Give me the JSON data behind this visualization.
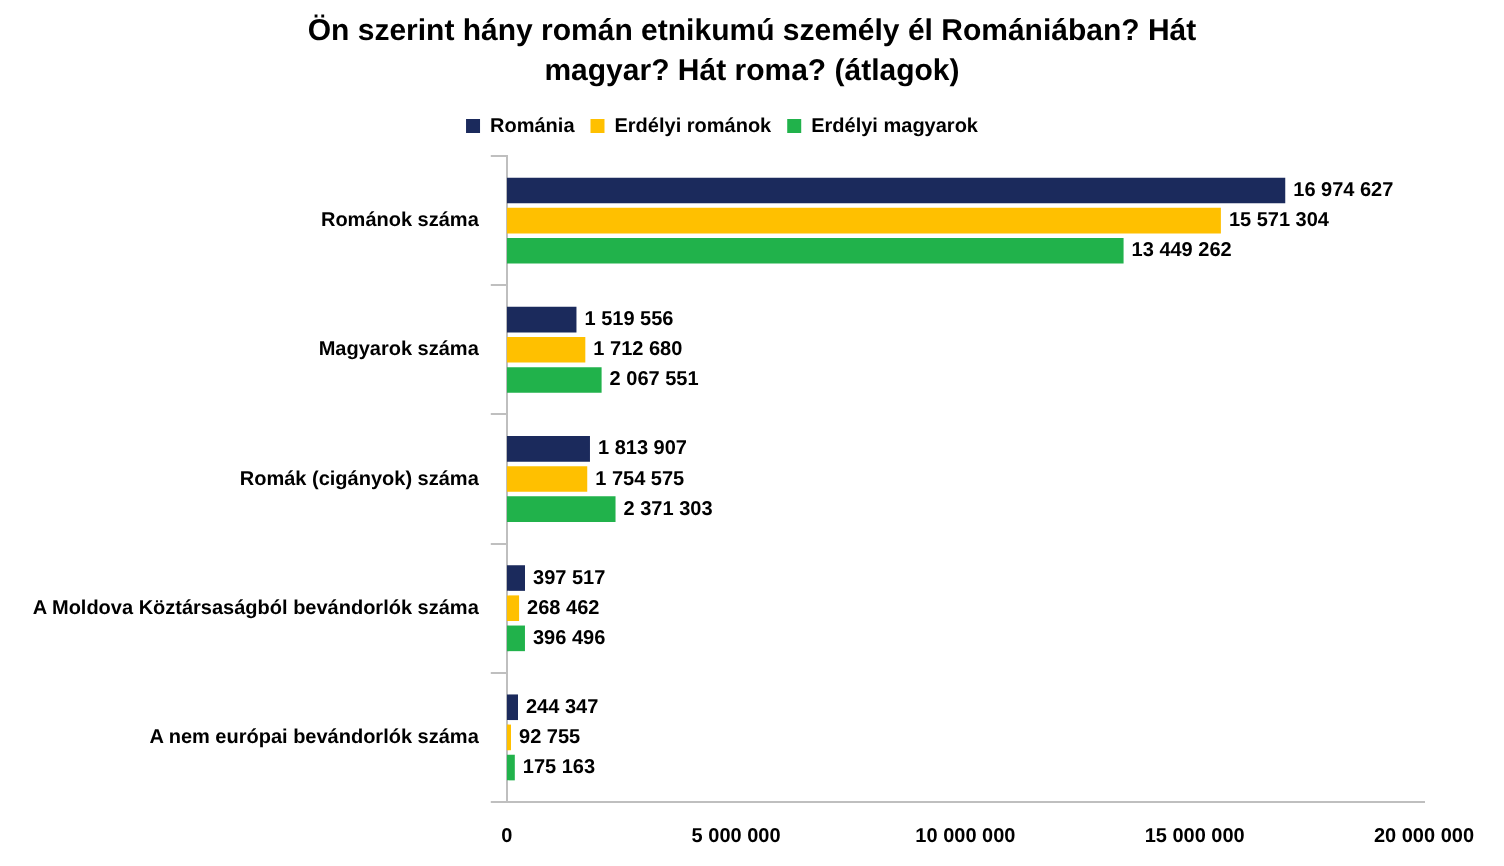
{
  "chart_data": {
    "type": "bar",
    "orientation": "horizontal",
    "title": "Ön szerint hány román etnikumú személy él Romániában? Hát magyar? Hát roma? (átlagok)",
    "categories": [
      "Románok száma",
      "Magyarok száma",
      "Romák (cigányok) száma",
      "A Moldova Köztársaságból bevándorlók száma",
      "A nem európai bevándorlók száma"
    ],
    "series": [
      {
        "name": "Románia",
        "color": "#1b2a5c",
        "values": [
          16974627,
          1519556,
          1813907,
          397517,
          244347
        ],
        "value_labels": [
          "16 974 627",
          "1 519 556",
          "1 813 907",
          "397 517",
          "244 347"
        ]
      },
      {
        "name": "Erdélyi románok",
        "color": "#ffc000",
        "values": [
          15571304,
          1712680,
          1754575,
          268462,
          92755
        ],
        "value_labels": [
          "15 571 304",
          "1 712 680",
          "1 754 575",
          "268 462",
          "92 755"
        ]
      },
      {
        "name": "Erdélyi magyarok",
        "color": "#21b24b",
        "values": [
          13449262,
          2067551,
          2371303,
          396496,
          175163
        ],
        "value_labels": [
          "13 449 262",
          "2 067 551",
          "2 371 303",
          "396 496",
          "175 163"
        ]
      }
    ],
    "xlim": [
      0,
      20000000
    ],
    "xticks": [
      0,
      {
        "value": 5000000,
        "label": "5 000 000"
      },
      {
        "value": 10000000,
        "label": "10 000 000"
      },
      {
        "value": 15000000,
        "label": "15 000 000"
      },
      {
        "value": 20000000,
        "label": "20 000 000"
      }
    ],
    "legend": "top",
    "grid": false
  }
}
